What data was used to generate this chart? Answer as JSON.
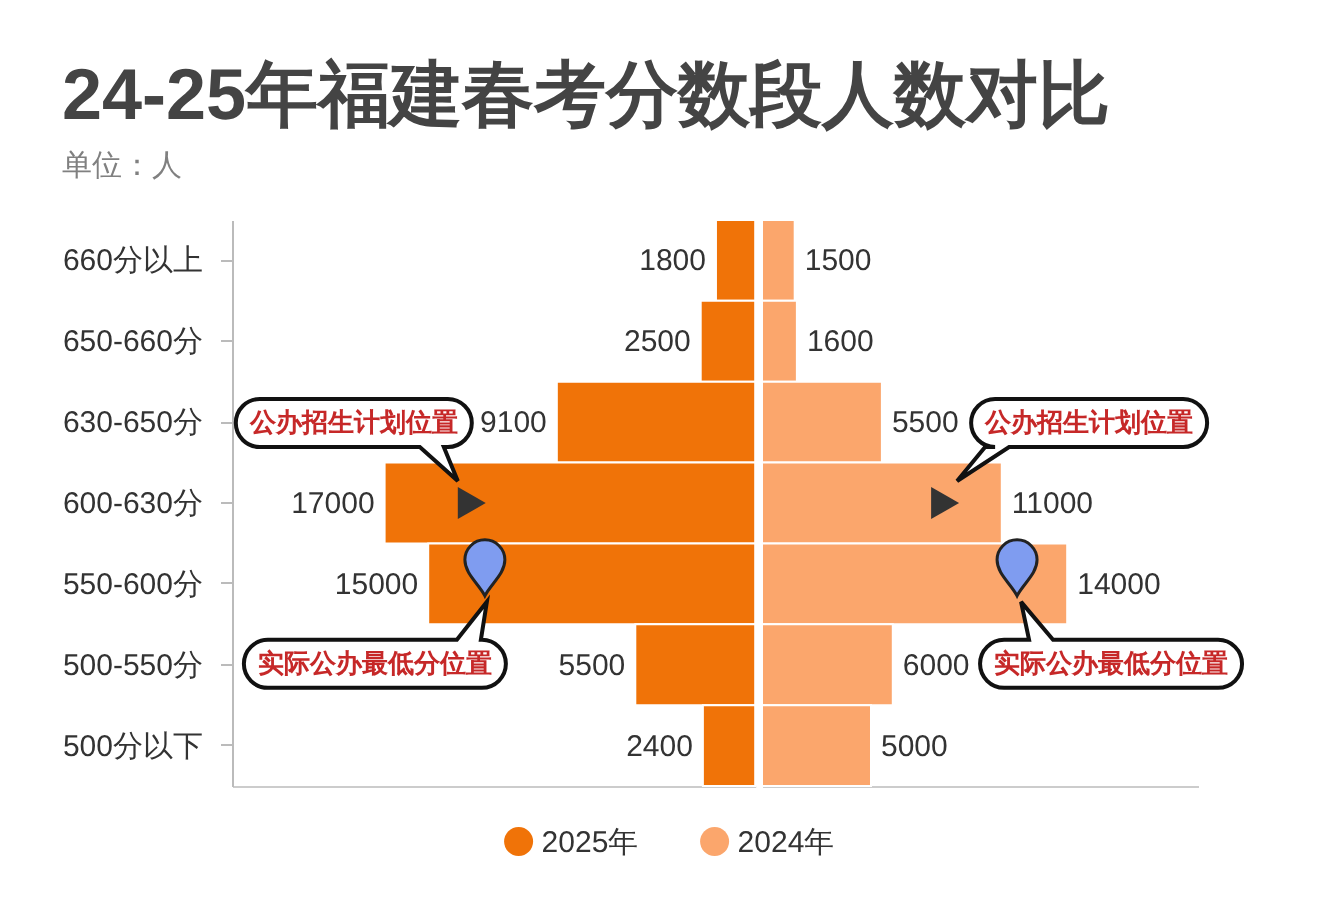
{
  "chart_data": [
    {
      "type": "bar",
      "orientation": "horizontal",
      "title": "24-25年福建春考分数段人数对比",
      "subtitle": "单位：人",
      "categories": [
        "660分以上",
        "650-660分",
        "630-650分",
        "600-630分",
        "550-600分",
        "500-550分",
        "500分以下"
      ],
      "series": [
        {
          "name": "2025年",
          "color": "#f07308",
          "values": [
            1800,
            2500,
            9100,
            17000,
            15000,
            5500,
            2400
          ],
          "value_labels": [
            "1800",
            "2500",
            "9100",
            "17000",
            "15000",
            "5500",
            "2400"
          ]
        },
        {
          "type": "scatter",
          "color": "#333333",
          "marker": "triangle",
          "values": [
            null,
            null,
            null,
            13000,
            null,
            null,
            null
          ]
        },
        {
          "type": "scatter",
          "color": "#7f9cf0",
          "marker": "circle",
          "values": [
            null,
            null,
            null,
            null,
            12400,
            null,
            null
          ]
        }
      ],
      "xlim": [
        24000,
        0
      ],
      "legend": "bottom",
      "tick_labels": "y",
      "annotations": [
        {
          "text": "公办招生计划位置",
          "x": 13000,
          "y": "600-630分"
        },
        {
          "text": "实际公办最低分位置",
          "x": 12400,
          "y": "550-600分"
        }
      ]
    },
    {
      "type": "bar",
      "orientation": "horizontal",
      "categories": [
        "660分以上",
        "650-660分",
        "630-650分",
        "600-630分",
        "550-600分",
        "500-550分",
        "500分以下"
      ],
      "series": [
        {
          "name": "2024年",
          "color": "#fba66c",
          "values": [
            1500,
            1600,
            5500,
            11000,
            14000,
            6000,
            5000
          ],
          "value_labels": [
            "1500",
            "1600",
            "5500",
            "11000",
            "14000",
            "6000",
            "5000"
          ]
        },
        {
          "type": "scatter",
          "color": "#333333",
          "marker": "triangle",
          "values": [
            null,
            null,
            null,
            8400,
            null,
            null,
            null
          ]
        },
        {
          "type": "scatter",
          "color": "#7f9cf0",
          "marker": "circle",
          "values": [
            null,
            null,
            null,
            null,
            11700,
            null,
            null
          ]
        }
      ],
      "xlim": [
        0,
        20000
      ],
      "legend": "bottom",
      "tick_labels": false,
      "annotations": [
        {
          "text": "公办招生计划位置",
          "x": 8400,
          "y": "600-630分"
        },
        {
          "text": "实际公办最低分位置",
          "x": 11700,
          "y": "550-600分"
        }
      ]
    }
  ]
}
